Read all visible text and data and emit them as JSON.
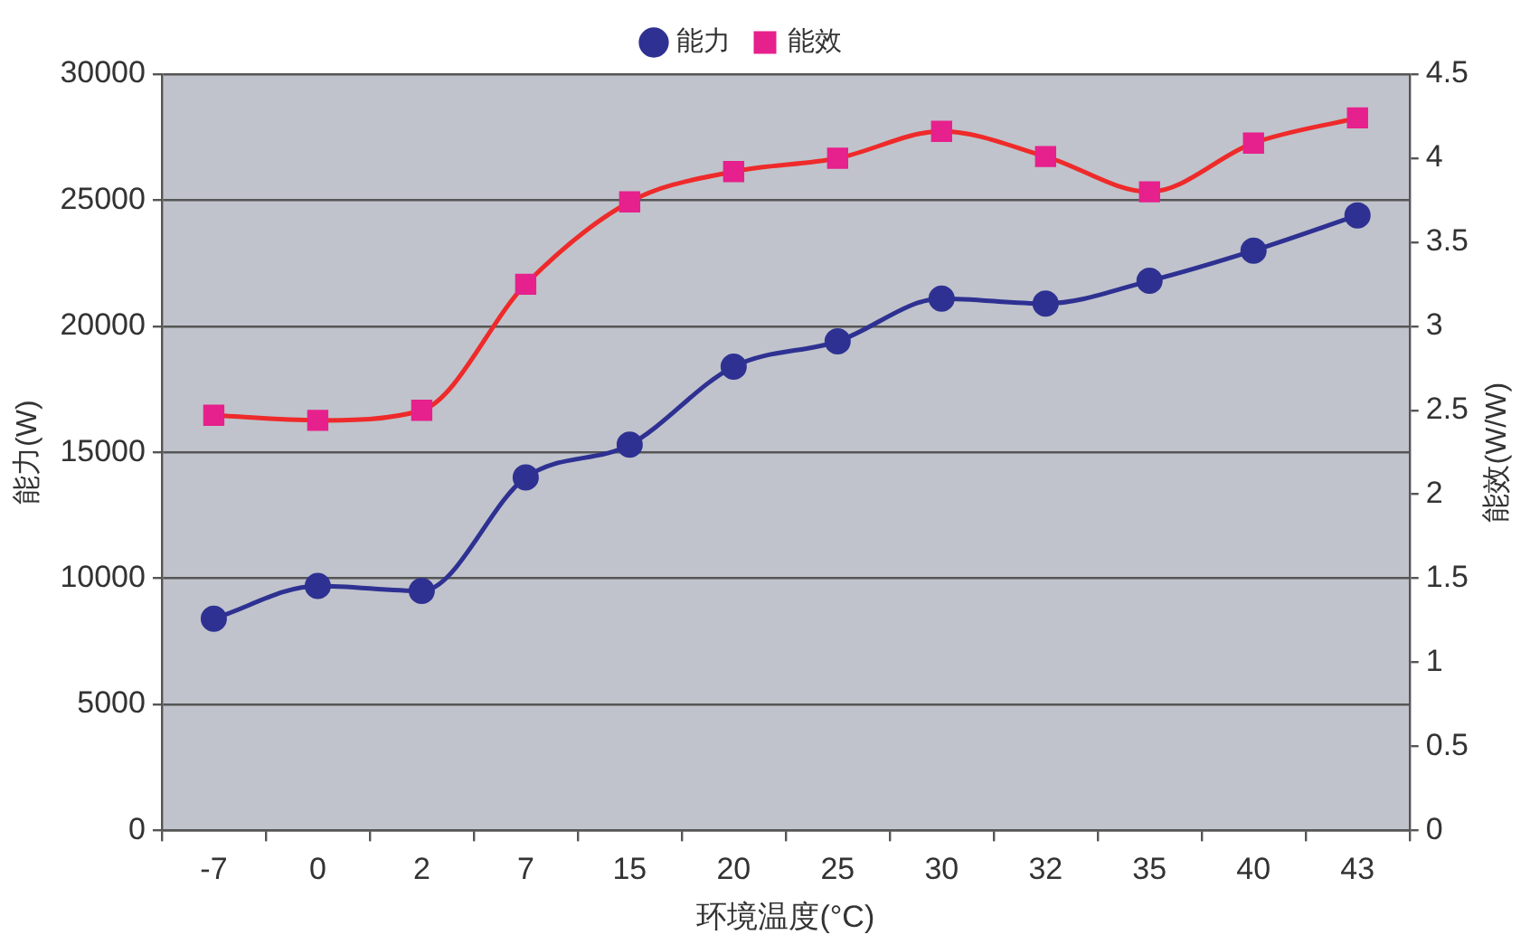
{
  "chart_data": {
    "type": "line",
    "xlabel": "环境温度(°C)",
    "ylabel": "能力(W)",
    "y2label": "能效(W/W)",
    "categories": [
      "-7",
      "0",
      "2",
      "7",
      "15",
      "20",
      "25",
      "30",
      "32",
      "35",
      "40",
      "43"
    ],
    "series": [
      {
        "name": "能力",
        "color": "#2e3192",
        "marker": "circle",
        "values": [
          8400,
          9700,
          9500,
          14000,
          15300,
          18400,
          19400,
          21100,
          20900,
          21800,
          23000,
          24400
        ]
      },
      {
        "name": "能效",
        "color": "#ee2a2a",
        "colors": [
          "#e6208c",
          "#e6208c",
          "#e6208c",
          "#e6208c",
          "#e6208c",
          "#e6208c",
          "#e6208c",
          "#e6208c",
          "#e6208c",
          "#e6208c",
          "#e6208c",
          "#e6208c"
        ],
        "marker": "square",
        "axis": "y2",
        "values": [
          2.47,
          2.44,
          2.5,
          3.25,
          3.74,
          3.92,
          4.0,
          4.16,
          4.01,
          3.8,
          4.09,
          4.24
        ]
      }
    ],
    "ylim": [
      0,
      30000
    ],
    "yticks": [
      0,
      5000,
      10000,
      15000,
      20000,
      25000,
      30000
    ],
    "y2lim": [
      0,
      4.5
    ],
    "y2ticks": [
      0,
      0.5,
      1,
      1.5,
      2,
      2.5,
      3,
      3.5,
      4,
      4.5
    ],
    "grid": "y",
    "legend": "top",
    "line_style": "solid"
  }
}
